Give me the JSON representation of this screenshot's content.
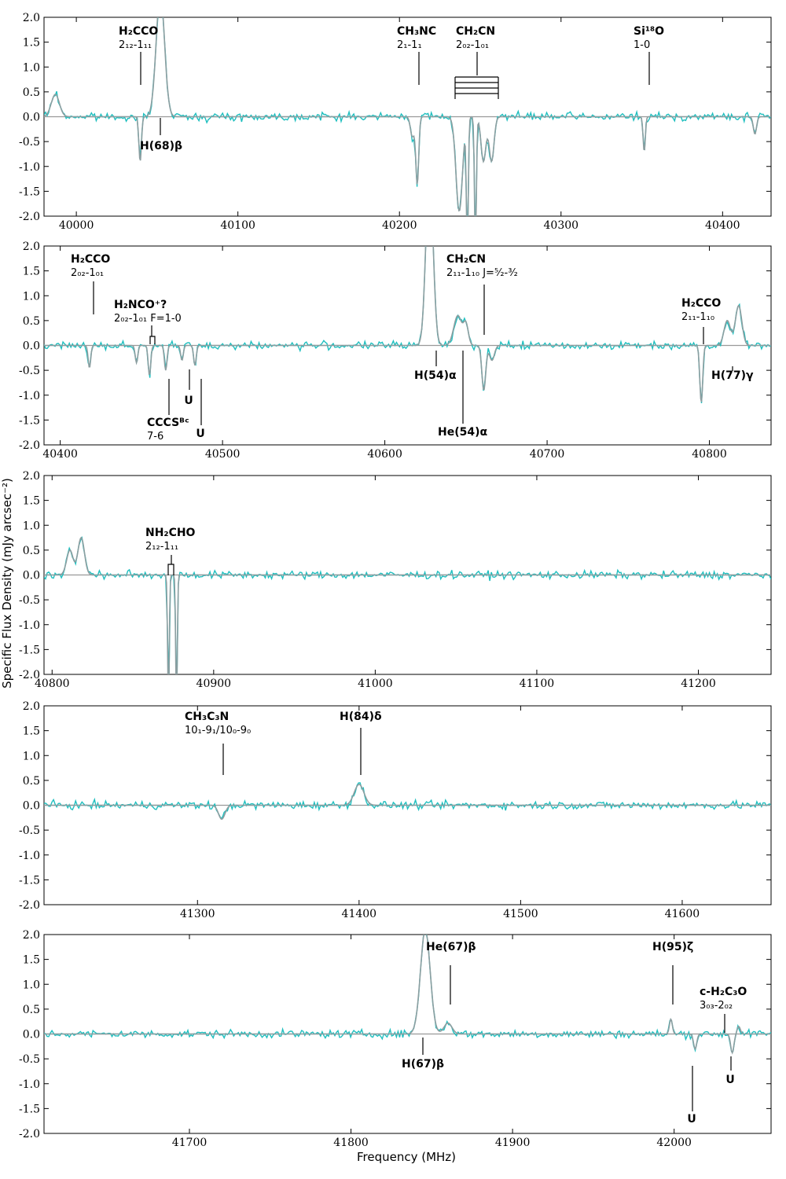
{
  "figure": {
    "ylabel": "Specific Flux Density (mJy arcsec⁻²)",
    "xlabel": "Frequency (MHz)"
  },
  "colors": {
    "observed": "#1fbfbf",
    "model": "#8c9ea0",
    "zero": "#999999"
  },
  "chart_data": [
    {
      "type": "line",
      "xlim": [
        39980,
        40430
      ],
      "ylim": [
        -2.0,
        2.0
      ],
      "xticks": [
        40000,
        40100,
        40200,
        40300,
        40400
      ],
      "yticks": [
        2.0,
        1.5,
        1.0,
        0.5,
        0.0,
        -0.5,
        -1.0,
        -1.5,
        -2.0
      ],
      "features": [
        {
          "x": 39987,
          "a": 0.45,
          "w": 2.5
        },
        {
          "x": 40039.5,
          "a": -0.9,
          "w": 0.8
        },
        {
          "x": 40052,
          "a": 2.5,
          "w": 2.6
        },
        {
          "x": 40211,
          "a": -1.35,
          "w": 0.9
        },
        {
          "x": 40208,
          "a": -0.4,
          "w": 1.2
        },
        {
          "x": 40237,
          "a": -1.9,
          "w": 2.0
        },
        {
          "x": 40242,
          "a": -2.6,
          "w": 0.6
        },
        {
          "x": 40247,
          "a": -2.6,
          "w": 0.6
        },
        {
          "x": 40252,
          "a": -0.9,
          "w": 1.5
        },
        {
          "x": 40257,
          "a": -0.9,
          "w": 1.5
        },
        {
          "x": 40351.5,
          "a": -0.7,
          "w": 0.7
        },
        {
          "x": 40420,
          "a": -0.35,
          "w": 1.0
        }
      ],
      "lines": [
        {
          "id": "h2cco",
          "name": "H₂CCO",
          "transition": "2₁₂-1₁₁"
        },
        {
          "id": "ch3nc",
          "name": "CH₃NC",
          "transition": "2₁-1₁"
        },
        {
          "id": "ch2cn",
          "name": "CH₂CN",
          "transition": "2₀₂-1₀₁"
        },
        {
          "id": "si18o",
          "name": "Si¹⁸O",
          "transition": "1-0"
        },
        {
          "id": "h68b",
          "name": "H(68)β"
        }
      ]
    },
    {
      "type": "line",
      "xlim": [
        40390,
        40838
      ],
      "ylim": [
        -2.0,
        2.0
      ],
      "xticks": [
        40400,
        40500,
        40600,
        40700,
        40800
      ],
      "yticks": [
        2.0,
        1.5,
        1.0,
        0.5,
        0.0,
        -0.5,
        -1.0,
        -1.5,
        -2.0
      ],
      "features": [
        {
          "x": 40418,
          "a": -0.45,
          "w": 0.8
        },
        {
          "x": 40447,
          "a": -0.35,
          "w": 0.8
        },
        {
          "x": 40455,
          "a": -0.6,
          "w": 0.8
        },
        {
          "x": 40465,
          "a": -0.5,
          "w": 0.8
        },
        {
          "x": 40475,
          "a": -0.3,
          "w": 0.8
        },
        {
          "x": 40483,
          "a": -0.4,
          "w": 0.8
        },
        {
          "x": 40627.5,
          "a": 3.5,
          "w": 2.2
        },
        {
          "x": 40645,
          "a": 0.6,
          "w": 2.5
        },
        {
          "x": 40650,
          "a": 0.4,
          "w": 1.5
        },
        {
          "x": 40661,
          "a": -0.9,
          "w": 1.2
        },
        {
          "x": 40666,
          "a": -0.3,
          "w": 1.5
        },
        {
          "x": 40795,
          "a": -1.15,
          "w": 0.9
        },
        {
          "x": 40811,
          "a": 0.5,
          "w": 2.0
        },
        {
          "x": 40818,
          "a": 0.8,
          "w": 2.0
        }
      ],
      "lines": [
        {
          "id": "h2cco-a",
          "name": "H₂CCO",
          "transition": "2₀₂-1₀₁"
        },
        {
          "id": "h2nco",
          "name": "H₂NCO⁺?",
          "transition": "2₀₂-1₀₁ F=1-0"
        },
        {
          "id": "ch2cn-b",
          "name": "CH₂CN",
          "transition": "2₁₁-1₁₀ J=⁵⁄₂-³⁄₂"
        },
        {
          "id": "h2cco-b",
          "name": "H₂CCO",
          "transition": "2₁₁-1₁₀"
        },
        {
          "id": "cccs",
          "name": "CCCSᴮᶜ",
          "transition": "7-6"
        },
        {
          "id": "u1",
          "name": "U"
        },
        {
          "id": "u2",
          "name": "U"
        },
        {
          "id": "h54a",
          "name": "H(54)α"
        },
        {
          "id": "he54a",
          "name": "He(54)α"
        },
        {
          "id": "h77g",
          "name": "H(77)γ"
        }
      ]
    },
    {
      "type": "line",
      "xlim": [
        40795,
        41245
      ],
      "ylim": [
        -2.0,
        2.0
      ],
      "xticks": [
        40800,
        40900,
        41000,
        41100,
        41200
      ],
      "yticks": [
        2.0,
        1.5,
        1.0,
        0.5,
        0.0,
        -0.5,
        -1.0,
        -1.5,
        -2.0
      ],
      "features": [
        {
          "x": 40811,
          "a": 0.5,
          "w": 2.0
        },
        {
          "x": 40818,
          "a": 0.75,
          "w": 2.0
        },
        {
          "x": 40872,
          "a": -2.6,
          "w": 0.5
        },
        {
          "x": 40877,
          "a": -2.6,
          "w": 0.5
        }
      ],
      "lines": [
        {
          "id": "nh2cho",
          "name": "NH₂CHO",
          "transition": "2₁₂-1₁₁"
        }
      ]
    },
    {
      "type": "line",
      "xlim": [
        41205,
        41655
      ],
      "ylim": [
        -2.0,
        2.0
      ],
      "xticks": [
        41300,
        41400,
        41500,
        41600
      ],
      "yticks": [
        2.0,
        1.5,
        1.0,
        0.5,
        0.0,
        -0.5,
        -1.0,
        -1.5,
        -2.0
      ],
      "features": [
        {
          "x": 41315,
          "a": -0.28,
          "w": 2.0
        },
        {
          "x": 41400,
          "a": 0.42,
          "w": 3.0
        }
      ],
      "lines": [
        {
          "id": "ch3c3n",
          "name": "CH₃C₃N",
          "transition": "10₁-9₁/10₀-9₀"
        },
        {
          "id": "h84d",
          "name": "H(84)δ"
        }
      ]
    },
    {
      "type": "line",
      "xlim": [
        41610,
        42060
      ],
      "ylim": [
        -2.0,
        2.0
      ],
      "xticks": [
        41700,
        41800,
        41900,
        42000
      ],
      "yticks": [
        2.0,
        1.5,
        1.0,
        0.5,
        0.0,
        -0.5,
        -1.0,
        -1.5,
        -2.0
      ],
      "features": [
        {
          "x": 41846,
          "a": 2.1,
          "w": 3.0
        },
        {
          "x": 41860,
          "a": 0.22,
          "w": 2.5
        },
        {
          "x": 41998,
          "a": 0.3,
          "w": 0.9
        },
        {
          "x": 42013,
          "a": -0.3,
          "w": 1.0
        },
        {
          "x": 42036,
          "a": -0.38,
          "w": 1.0
        },
        {
          "x": 42040,
          "a": 0.15,
          "w": 1.0
        }
      ],
      "lines": [
        {
          "id": "he67b",
          "name": "He(67)β"
        },
        {
          "id": "h95z",
          "name": "H(95)ζ"
        },
        {
          "id": "c-h2c3o",
          "name": "c-H₂C₃O",
          "transition": "3₀₃-2₀₂"
        },
        {
          "id": "h67b",
          "name": "H(67)β"
        },
        {
          "id": "u3",
          "name": "U"
        },
        {
          "id": "u4",
          "name": "U"
        }
      ]
    }
  ]
}
